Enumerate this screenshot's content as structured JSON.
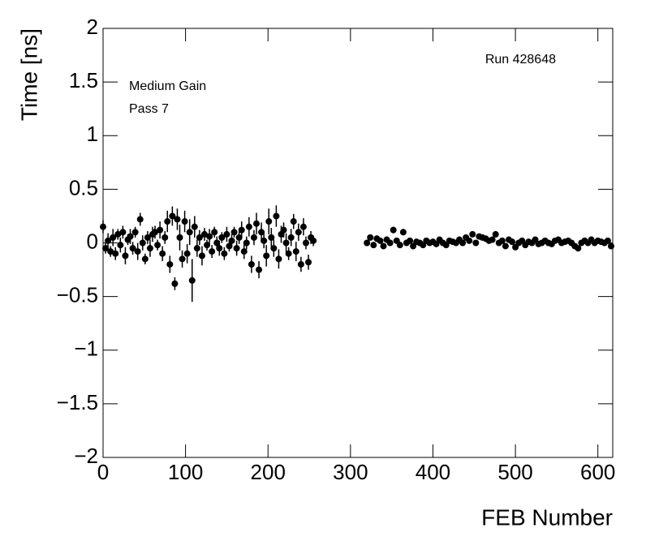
{
  "chart_data": {
    "type": "scatter",
    "x_label": "FEB Number",
    "y_label": "Time [ns]",
    "annotations": [
      "Run 428648",
      "Medium Gain",
      "Pass 7"
    ],
    "xlim": [
      0,
      618
    ],
    "ylim": [
      -2,
      2
    ],
    "xticks": [
      0,
      100,
      200,
      300,
      400,
      500,
      600
    ],
    "yticks": [
      {
        "value": -2,
        "label": "−2"
      },
      {
        "value": -1.5,
        "label": "−1.5"
      },
      {
        "value": -1,
        "label": "−1"
      },
      {
        "value": -0.5,
        "label": "−0.5"
      },
      0,
      0.5,
      1,
      1.5,
      2
    ],
    "series": [
      {
        "color": "#000000",
        "x": [
          0,
          3,
          6,
          9,
          12,
          15,
          18,
          21,
          24,
          27,
          30,
          33,
          36,
          39,
          42,
          45,
          48,
          51,
          54,
          57,
          60,
          63,
          66,
          69,
          72,
          75,
          78,
          81,
          84,
          87,
          90,
          93,
          96,
          99,
          102,
          105,
          108,
          111,
          114,
          117,
          120,
          123,
          126,
          129,
          132,
          135,
          138,
          141,
          144,
          147,
          150,
          153,
          156,
          159,
          162,
          165,
          168,
          171,
          174,
          177,
          180,
          183,
          186,
          189,
          192,
          195,
          198,
          201,
          204,
          207,
          210,
          213,
          216,
          219,
          222,
          225,
          228,
          231,
          234,
          237,
          240,
          243,
          246,
          249,
          252,
          255,
          320,
          324,
          328,
          332,
          336,
          340,
          344,
          348,
          352,
          356,
          360,
          364,
          368,
          372,
          376,
          380,
          384,
          388,
          392,
          396,
          400,
          404,
          408,
          412,
          416,
          420,
          424,
          428,
          432,
          436,
          440,
          444,
          448,
          452,
          456,
          460,
          464,
          468,
          472,
          476,
          480,
          484,
          488,
          492,
          496,
          500,
          504,
          508,
          512,
          516,
          520,
          524,
          528,
          532,
          536,
          540,
          544,
          548,
          552,
          556,
          560,
          564,
          568,
          572,
          576,
          580,
          584,
          588,
          592,
          596,
          600,
          604,
          608,
          612,
          616
        ],
        "values": [
          0.15,
          -0.05,
          0.02,
          -0.08,
          0.05,
          -0.1,
          0.08,
          -0.02,
          0.1,
          -0.12,
          0.03,
          0.06,
          -0.05,
          0.1,
          -0.08,
          0.22,
          0.0,
          -0.15,
          0.05,
          -0.05,
          0.08,
          0.1,
          -0.02,
          0.12,
          -0.1,
          0.05,
          0.2,
          -0.2,
          0.25,
          -0.38,
          0.22,
          0.05,
          -0.15,
          0.2,
          -0.1,
          0.1,
          -0.35,
          0.15,
          -0.05,
          0.05,
          -0.12,
          0.08,
          -0.02,
          0.06,
          -0.08,
          0.1,
          0.0,
          -0.05,
          0.05,
          -0.1,
          0.08,
          -0.03,
          0.02,
          0.1,
          -0.05,
          0.05,
          0.12,
          -0.08,
          0.0,
          0.15,
          -0.2,
          0.05,
          0.18,
          -0.25,
          0.1,
          0.02,
          -0.12,
          0.2,
          0.05,
          -0.05,
          0.25,
          -0.15,
          0.08,
          0.12,
          0.0,
          -0.1,
          0.05,
          0.2,
          -0.08,
          0.1,
          -0.2,
          0.15,
          0.0,
          -0.18,
          0.05,
          0.02,
          0.0,
          0.05,
          -0.02,
          0.04,
          0.02,
          -0.03,
          0.03,
          0.0,
          0.12,
          0.02,
          -0.02,
          0.1,
          0.0,
          0.02,
          -0.03,
          0.01,
          0.0,
          -0.02,
          0.02,
          0.0,
          0.01,
          -0.01,
          0.03,
          0.0,
          -0.02,
          0.02,
          0.01,
          0.0,
          0.03,
          0.0,
          0.05,
          0.02,
          0.08,
          0.0,
          0.06,
          0.05,
          0.04,
          0.02,
          0.03,
          0.08,
          0.0,
          0.02,
          -0.03,
          0.03,
          0.01,
          -0.04,
          0.0,
          0.02,
          -0.02,
          0.01,
          0.0,
          0.03,
          -0.01,
          0.0,
          0.02,
          0.0,
          -0.01,
          0.02,
          0.03,
          0.0,
          0.01,
          0.02,
          0.0,
          -0.03,
          -0.05,
          0.0,
          0.02,
          0.0,
          0.03,
          0.0,
          0.02,
          0.01,
          0.0,
          0.02,
          -0.03
        ],
        "errors": [
          0.06,
          0.05,
          0.07,
          0.05,
          0.08,
          0.06,
          0.05,
          0.07,
          0.06,
          0.08,
          0.05,
          0.07,
          0.06,
          0.05,
          0.08,
          0.06,
          0.07,
          0.05,
          0.06,
          0.08,
          0.07,
          0.06,
          0.05,
          0.08,
          0.07,
          0.06,
          0.1,
          0.08,
          0.09,
          0.06,
          0.1,
          0.12,
          0.08,
          0.1,
          0.09,
          0.12,
          0.2,
          0.1,
          0.08,
          0.07,
          0.09,
          0.06,
          0.05,
          0.07,
          0.06,
          0.05,
          0.06,
          0.07,
          0.05,
          0.06,
          0.07,
          0.05,
          0.06,
          0.05,
          0.07,
          0.06,
          0.08,
          0.07,
          0.06,
          0.09,
          0.08,
          0.07,
          0.1,
          0.08,
          0.09,
          0.07,
          0.1,
          0.12,
          0.09,
          0.08,
          0.1,
          0.09,
          0.08,
          0.07,
          0.09,
          0.06,
          0.08,
          0.07,
          0.09,
          0.08,
          0.07,
          0.08,
          0.06,
          0.07,
          0.06,
          0.05,
          0.03,
          0.02,
          0.02,
          0.03,
          0.02,
          0.02,
          0.03,
          0.02,
          0.03,
          0.02,
          0.02,
          0.03,
          0.02,
          0.02,
          0.02,
          0.02,
          0.02,
          0.02,
          0.02,
          0.02,
          0.02,
          0.02,
          0.02,
          0.02,
          0.02,
          0.02,
          0.02,
          0.02,
          0.02,
          0.02,
          0.02,
          0.02,
          0.02,
          0.02,
          0.02,
          0.02,
          0.02,
          0.02,
          0.02,
          0.03,
          0.02,
          0.02,
          0.02,
          0.02,
          0.02,
          0.02,
          0.02,
          0.02,
          0.02,
          0.02,
          0.02,
          0.02,
          0.02,
          0.02,
          0.02,
          0.02,
          0.02,
          0.02,
          0.02,
          0.02,
          0.02,
          0.02,
          0.02,
          0.02,
          0.02,
          0.02,
          0.02,
          0.02,
          0.02,
          0.02,
          0.02,
          0.02,
          0.02,
          0.02,
          0.02
        ]
      }
    ]
  }
}
